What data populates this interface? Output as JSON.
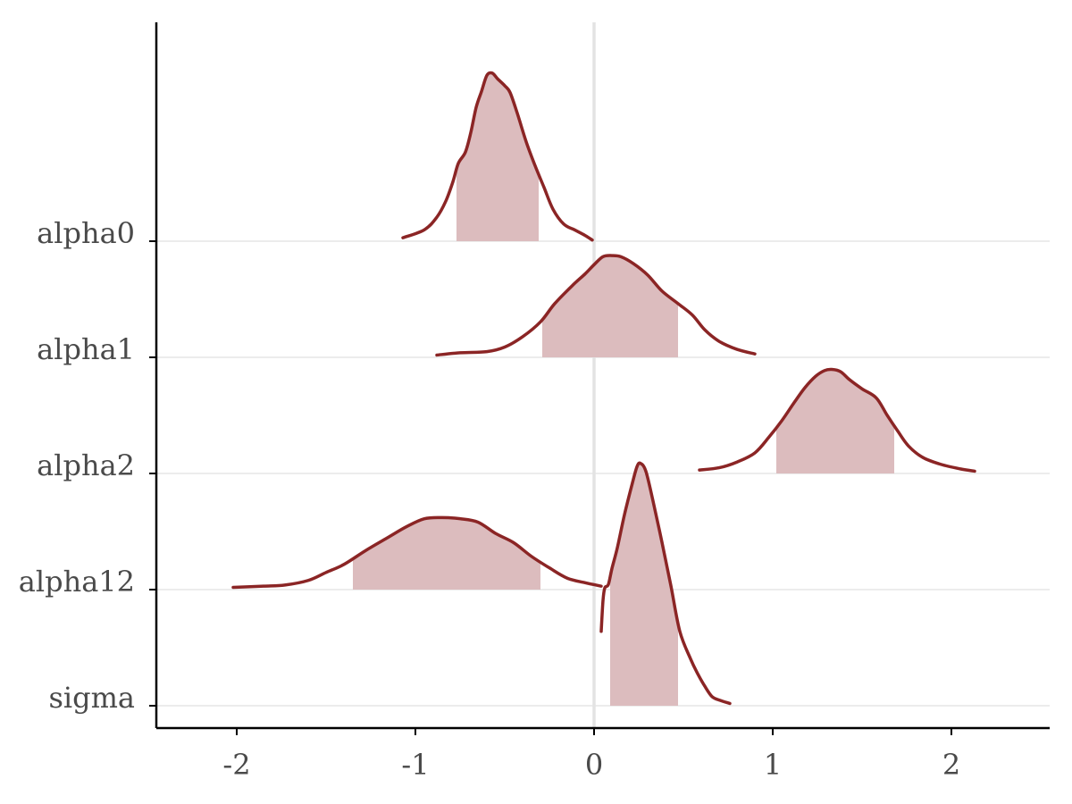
{
  "chart_data": {
    "type": "area",
    "subtype": "ridgeline-density",
    "title": "",
    "xlabel": "",
    "ylabel": "",
    "xlim": [
      -2.45,
      2.55
    ],
    "x_ticks": [
      -2,
      -1,
      0,
      1,
      2
    ],
    "x_tick_labels": [
      "-2",
      "-1",
      "0",
      "1",
      "2"
    ],
    "reference_line_x": 0,
    "grid": "horizontal baselines",
    "colors": {
      "line": "#8b2525",
      "fill": "#dcbcbe",
      "zero_line": "#e3e3e3",
      "gridline": "#e6e6e6"
    },
    "series": [
      {
        "name": "alpha0",
        "inner_interval": [
          -0.77,
          -0.31
        ],
        "density": [
          [
            -1.07,
            0.03
          ],
          [
            -0.95,
            0.1
          ],
          [
            -0.88,
            0.21
          ],
          [
            -0.83,
            0.35
          ],
          [
            -0.79,
            0.52
          ],
          [
            -0.76,
            0.68
          ],
          [
            -0.72,
            0.78
          ],
          [
            -0.69,
            0.95
          ],
          [
            -0.66,
            1.17
          ],
          [
            -0.63,
            1.31
          ],
          [
            -0.6,
            1.45
          ],
          [
            -0.57,
            1.47
          ],
          [
            -0.54,
            1.42
          ],
          [
            -0.5,
            1.36
          ],
          [
            -0.47,
            1.3
          ],
          [
            -0.43,
            1.12
          ],
          [
            -0.38,
            0.87
          ],
          [
            -0.33,
            0.66
          ],
          [
            -0.28,
            0.47
          ],
          [
            -0.23,
            0.28
          ],
          [
            -0.17,
            0.15
          ],
          [
            -0.11,
            0.1
          ],
          [
            -0.05,
            0.05
          ],
          [
            -0.01,
            0.01
          ]
        ]
      },
      {
        "name": "alpha1",
        "inner_interval": [
          -0.29,
          0.47
        ],
        "density": [
          [
            -0.88,
            0.02
          ],
          [
            -0.75,
            0.04
          ],
          [
            -0.6,
            0.05
          ],
          [
            -0.5,
            0.09
          ],
          [
            -0.4,
            0.18
          ],
          [
            -0.3,
            0.31
          ],
          [
            -0.22,
            0.47
          ],
          [
            -0.12,
            0.63
          ],
          [
            -0.05,
            0.73
          ],
          [
            0.0,
            0.81
          ],
          [
            0.05,
            0.88
          ],
          [
            0.1,
            0.89
          ],
          [
            0.15,
            0.88
          ],
          [
            0.22,
            0.82
          ],
          [
            0.3,
            0.72
          ],
          [
            0.38,
            0.58
          ],
          [
            0.47,
            0.47
          ],
          [
            0.55,
            0.37
          ],
          [
            0.62,
            0.24
          ],
          [
            0.7,
            0.14
          ],
          [
            0.8,
            0.07
          ],
          [
            0.9,
            0.03
          ]
        ]
      },
      {
        "name": "alpha2",
        "inner_interval": [
          1.02,
          1.68
        ],
        "density": [
          [
            0.59,
            0.03
          ],
          [
            0.7,
            0.05
          ],
          [
            0.8,
            0.1
          ],
          [
            0.9,
            0.18
          ],
          [
            0.98,
            0.32
          ],
          [
            1.05,
            0.46
          ],
          [
            1.12,
            0.62
          ],
          [
            1.18,
            0.75
          ],
          [
            1.24,
            0.85
          ],
          [
            1.29,
            0.9
          ],
          [
            1.33,
            0.91
          ],
          [
            1.38,
            0.89
          ],
          [
            1.43,
            0.82
          ],
          [
            1.5,
            0.74
          ],
          [
            1.58,
            0.66
          ],
          [
            1.64,
            0.51
          ],
          [
            1.7,
            0.37
          ],
          [
            1.76,
            0.24
          ],
          [
            1.84,
            0.14
          ],
          [
            1.94,
            0.08
          ],
          [
            2.05,
            0.04
          ],
          [
            2.13,
            0.02
          ]
        ]
      },
      {
        "name": "alpha12",
        "inner_interval": [
          -1.35,
          -0.3
        ],
        "density": [
          [
            -2.02,
            0.02
          ],
          [
            -1.85,
            0.03
          ],
          [
            -1.73,
            0.04
          ],
          [
            -1.6,
            0.08
          ],
          [
            -1.5,
            0.15
          ],
          [
            -1.4,
            0.22
          ],
          [
            -1.28,
            0.34
          ],
          [
            -1.16,
            0.45
          ],
          [
            -1.05,
            0.55
          ],
          [
            -0.95,
            0.62
          ],
          [
            -0.85,
            0.63
          ],
          [
            -0.75,
            0.62
          ],
          [
            -0.65,
            0.59
          ],
          [
            -0.55,
            0.49
          ],
          [
            -0.45,
            0.41
          ],
          [
            -0.35,
            0.29
          ],
          [
            -0.25,
            0.19
          ],
          [
            -0.15,
            0.1
          ],
          [
            -0.05,
            0.06
          ],
          [
            0.04,
            0.03
          ]
        ]
      },
      {
        "name": "sigma",
        "inner_interval": [
          0.09,
          0.47
        ],
        "density": [
          [
            0.04,
            0.65
          ],
          [
            0.05,
            0.92
          ],
          [
            0.06,
            1.03
          ],
          [
            0.08,
            1.06
          ],
          [
            0.1,
            1.2
          ],
          [
            0.13,
            1.38
          ],
          [
            0.17,
            1.67
          ],
          [
            0.21,
            1.92
          ],
          [
            0.24,
            2.09
          ],
          [
            0.26,
            2.12
          ],
          [
            0.29,
            2.05
          ],
          [
            0.33,
            1.79
          ],
          [
            0.38,
            1.43
          ],
          [
            0.43,
            1.05
          ],
          [
            0.48,
            0.65
          ],
          [
            0.54,
            0.41
          ],
          [
            0.58,
            0.28
          ],
          [
            0.62,
            0.17
          ],
          [
            0.66,
            0.08
          ],
          [
            0.7,
            0.05
          ],
          [
            0.76,
            0.02
          ]
        ]
      }
    ]
  }
}
